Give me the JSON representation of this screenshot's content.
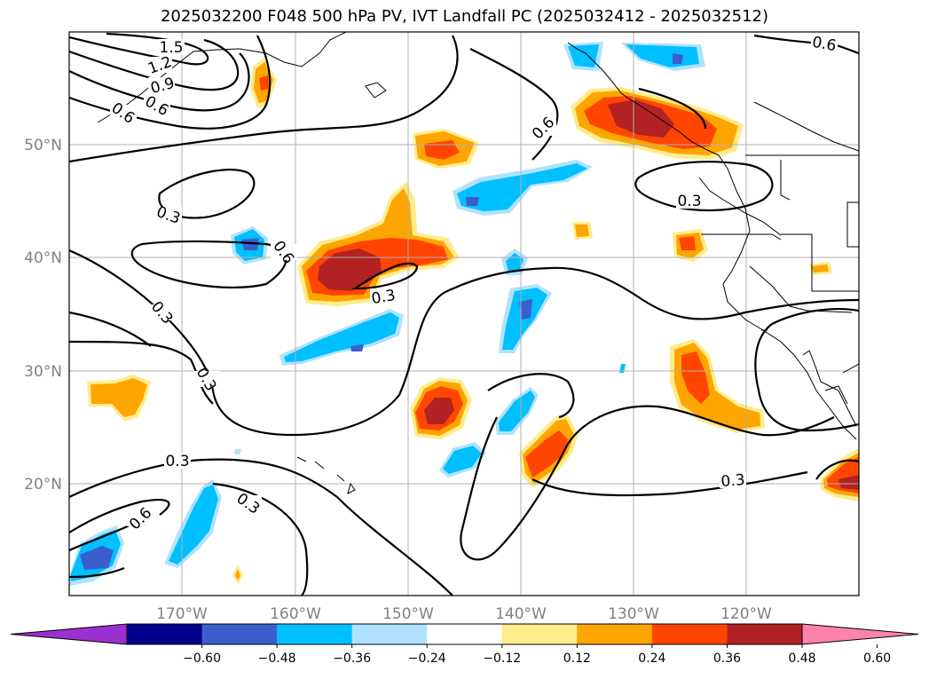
{
  "title": "2025032200 F048 500 hPa PV, IVT Landfall PC (2025032412 - 2025032512)",
  "map": {
    "lat_labels": [
      "50°N",
      "40°N",
      "30°N",
      "20°N"
    ],
    "lon_labels": [
      "170°W",
      "160°W",
      "150°W",
      "140°W",
      "130°W",
      "120°W"
    ],
    "pv_contour_labels": [
      {
        "text": "1.5"
      },
      {
        "text": "1.2"
      },
      {
        "text": "0.9"
      },
      {
        "text": "0.6"
      },
      {
        "text": "0.6"
      },
      {
        "text": "0.3"
      },
      {
        "text": "0.6"
      },
      {
        "text": "0.3"
      },
      {
        "text": "0.3"
      },
      {
        "text": "0.3"
      },
      {
        "text": "0.3"
      },
      {
        "text": "0.3"
      },
      {
        "text": "0.6"
      },
      {
        "text": "0.6"
      },
      {
        "text": "0.6"
      },
      {
        "text": "0.3"
      },
      {
        "text": "0.3"
      }
    ]
  },
  "colorbar": {
    "ticks": [
      "−0.60",
      "−0.48",
      "−0.36",
      "−0.24",
      "−0.12",
      "0.12",
      "0.24",
      "0.36",
      "0.48",
      "0.60"
    ],
    "colors": [
      "#9b30d0",
      "#00008b",
      "#3a5fcd",
      "#00bfff",
      "#b0e2ff",
      "#ffffff",
      "#ffec8b",
      "#ffa500",
      "#ff4500",
      "#b22222",
      "#ff82ab"
    ]
  }
}
